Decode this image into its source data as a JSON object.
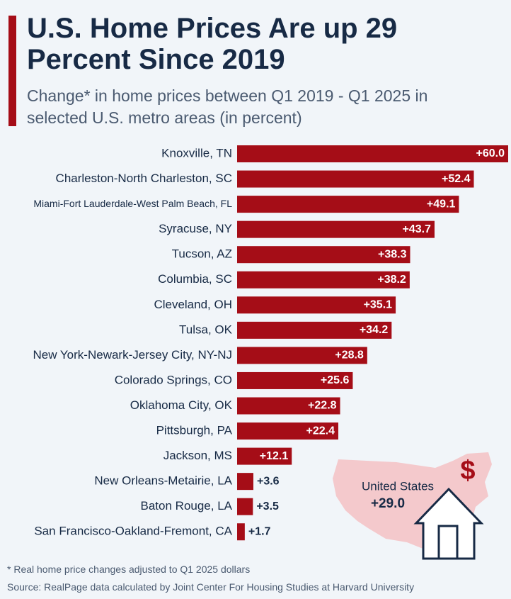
{
  "chart_data": {
    "type": "bar",
    "orientation": "horizontal",
    "title": "U.S. Home Prices Are up 29 Percent Since 2019",
    "subtitle": "Change* in home prices between Q1 2019 - Q1 2025 in selected U.S. metro areas (in percent)",
    "categories": [
      "Knoxville, TN",
      "Charleston-North Charleston, SC",
      "Miami-Fort Lauderdale-West Palm Beach, FL",
      "Syracuse, NY",
      "Tucson, AZ",
      "Columbia, SC",
      "Cleveland, OH",
      "Tulsa, OK",
      "New York-Newark-Jersey City, NY-NJ",
      "Colorado Springs, CO",
      "Oklahoma City, OK",
      "Pittsburgh, PA",
      "Jackson, MS",
      "New Orleans-Metairie, LA",
      "Baton Rouge, LA",
      "San Francisco-Oakland-Fremont, CA"
    ],
    "values": [
      60.0,
      52.4,
      49.1,
      43.7,
      38.3,
      38.2,
      35.1,
      34.2,
      28.8,
      25.6,
      22.8,
      22.4,
      12.1,
      3.6,
      3.5,
      1.7
    ],
    "value_labels": [
      "+60.0",
      "+52.4",
      "+49.1",
      "+43.7",
      "+38.3",
      "+38.2",
      "+35.1",
      "+34.2",
      "+28.8",
      "+25.6",
      "+22.8",
      "+22.4",
      "+12.1",
      "+3.6",
      "+3.5",
      "+1.7"
    ],
    "color": "#a50d17",
    "annotation": {
      "label": "United States",
      "value": 29.0,
      "value_label": "+29.0"
    },
    "footnote": "* Real home price changes adjusted to Q1 2025 dollars",
    "source": "Source: RealPage data calculated by Joint Center For Housing Studies at Harvard University"
  }
}
